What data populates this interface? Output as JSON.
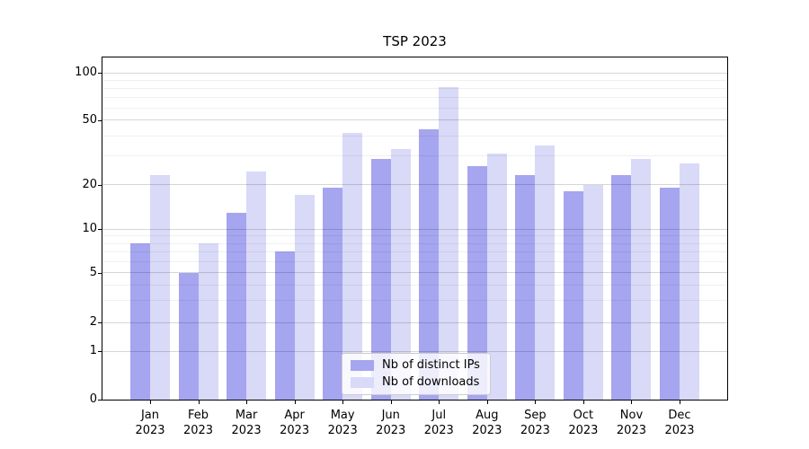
{
  "title": "TSP 2023",
  "chart_data": {
    "type": "bar",
    "title": "TSP 2023",
    "xlabel": "",
    "ylabel": "",
    "categories": [
      "Jan",
      "Feb",
      "Mar",
      "Apr",
      "May",
      "Jun",
      "Jul",
      "Aug",
      "Sep",
      "Oct",
      "Nov",
      "Dec"
    ],
    "year_label": "2023",
    "series": [
      {
        "name": "Nb of distinct IPs",
        "color": "#a5a5f0",
        "values": [
          8,
          5,
          13,
          7,
          19,
          29,
          44,
          26,
          23,
          18,
          23,
          19
        ]
      },
      {
        "name": "Nb of downloads",
        "color": "#d9d9f8",
        "values": [
          23,
          8,
          24,
          17,
          42,
          33,
          82,
          31,
          35,
          20,
          29,
          27
        ]
      }
    ],
    "y_axis": {
      "scale": "symlog-like",
      "major_ticks": [
        0,
        1,
        2,
        5,
        10,
        20,
        50,
        100
      ],
      "minor_ticks": [
        3,
        4,
        6,
        7,
        8,
        9,
        30,
        40,
        60,
        70,
        80,
        90
      ],
      "tick_fractions": [
        [
          0,
          0.0
        ],
        [
          1,
          0.1417
        ],
        [
          2,
          0.2257
        ],
        [
          5,
          0.3701
        ],
        [
          10,
          0.4974
        ],
        [
          20,
          0.6286
        ],
        [
          50,
          0.8163
        ],
        [
          100,
          0.9541
        ]
      ]
    },
    "grid": "major-and-minor, drawn over bars",
    "legend": {
      "position": "lower center",
      "entries": [
        "Nb of distinct IPs",
        "Nb of downloads"
      ]
    }
  }
}
